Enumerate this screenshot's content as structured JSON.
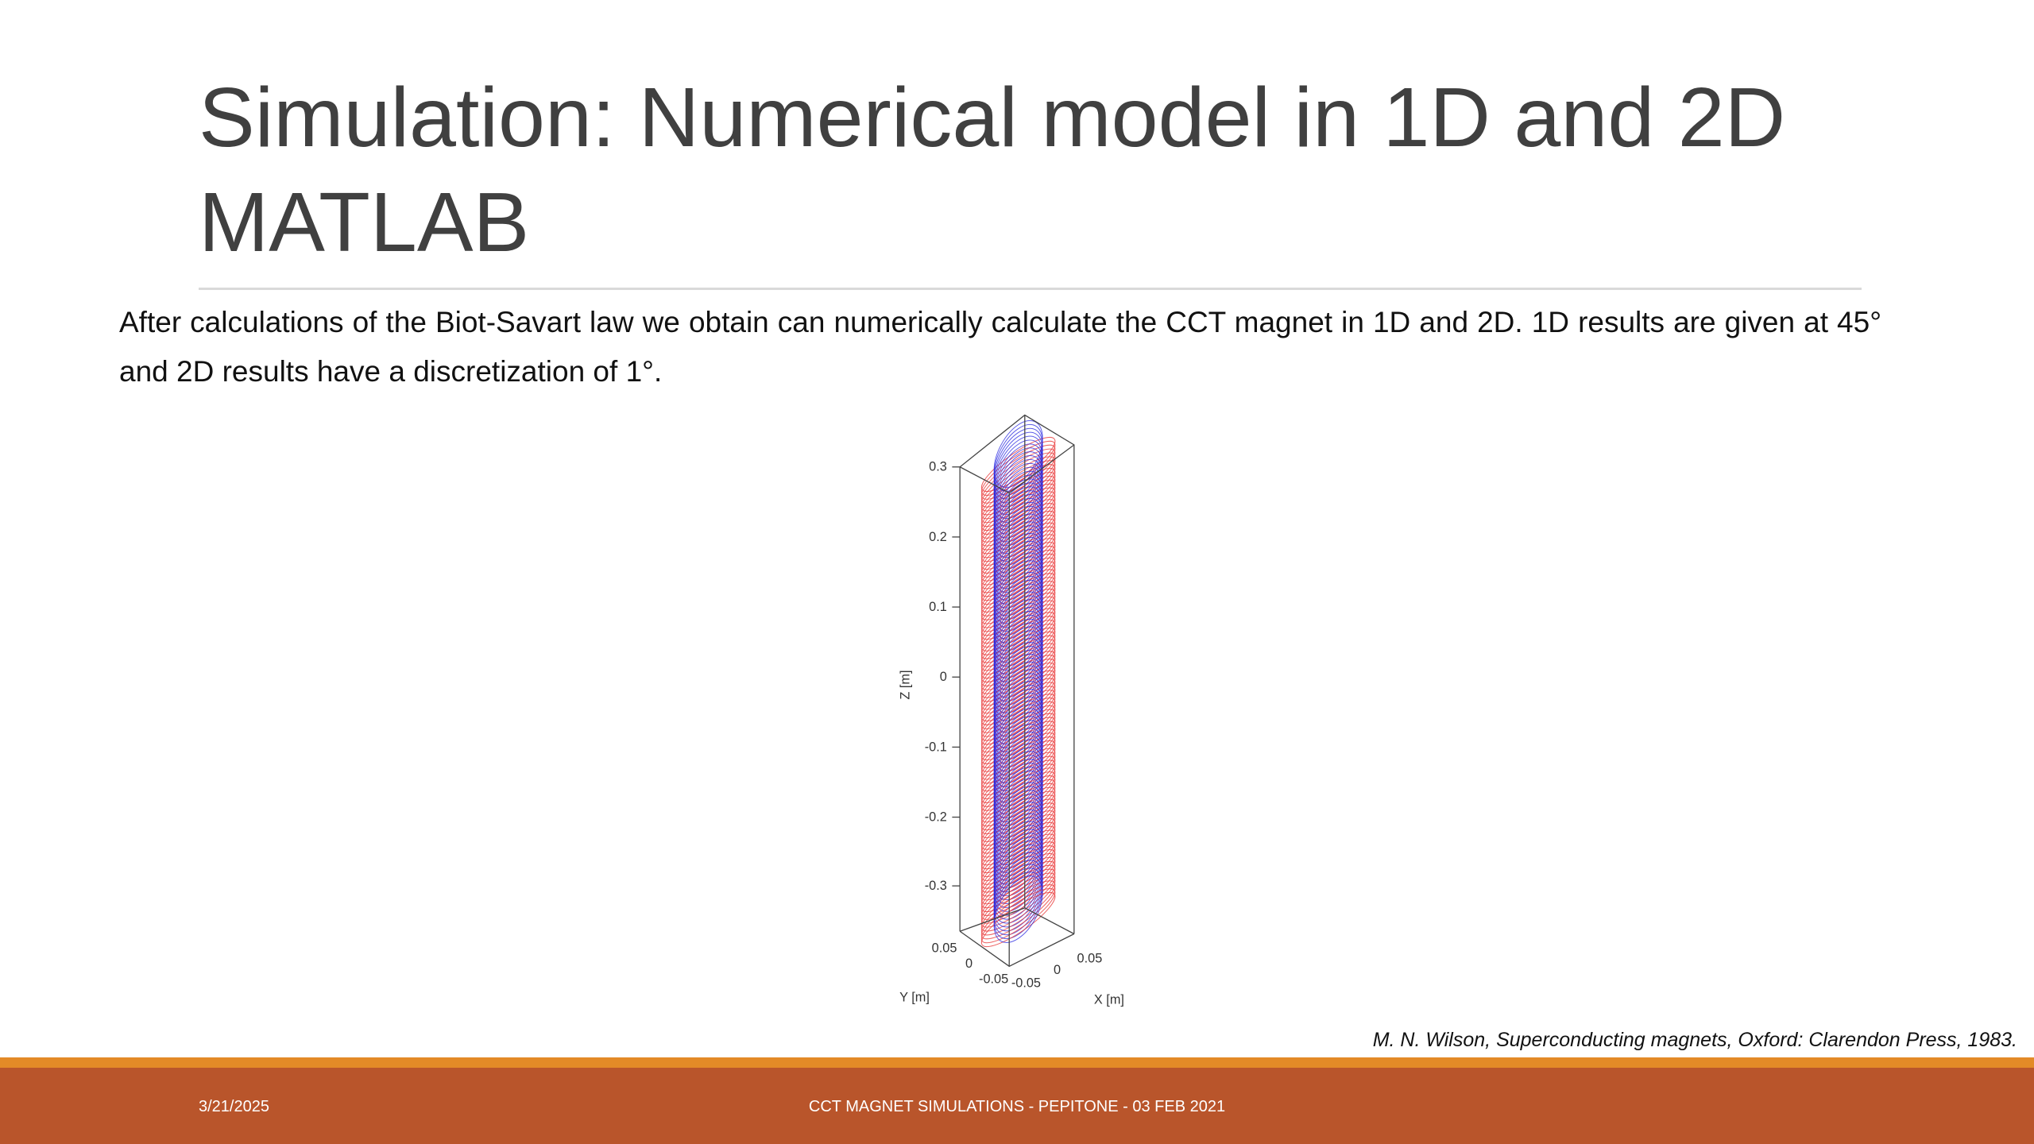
{
  "slide": {
    "title": "Simulation: Numerical model in 1D and 2D MATLAB",
    "body": "After calculations of the Biot-Savart law we obtain can numerically calculate the CCT magnet in 1D and 2D. 1D results are given at 45° and 2D results have a discretization of 1°.",
    "figure": {
      "z_label": "Z [m]",
      "z_ticks": [
        "0.3",
        "0.2",
        "0.1",
        "0",
        "-0.1",
        "-0.2",
        "-0.3"
      ],
      "y_label": "Y [m]",
      "y_ticks": [
        "0.05",
        "0",
        "-0.05"
      ],
      "x_label": "X [m]",
      "x_ticks": [
        "-0.05",
        "0",
        "0.05"
      ]
    },
    "citation": "M. N. Wilson, Superconducting magnets, Oxford: Clarendon Press, 1983.",
    "footer": {
      "date": "3/21/2025",
      "center": "CCT MAGNET SIMULATIONS - PEPITONE - 03 FEB 2021"
    }
  }
}
